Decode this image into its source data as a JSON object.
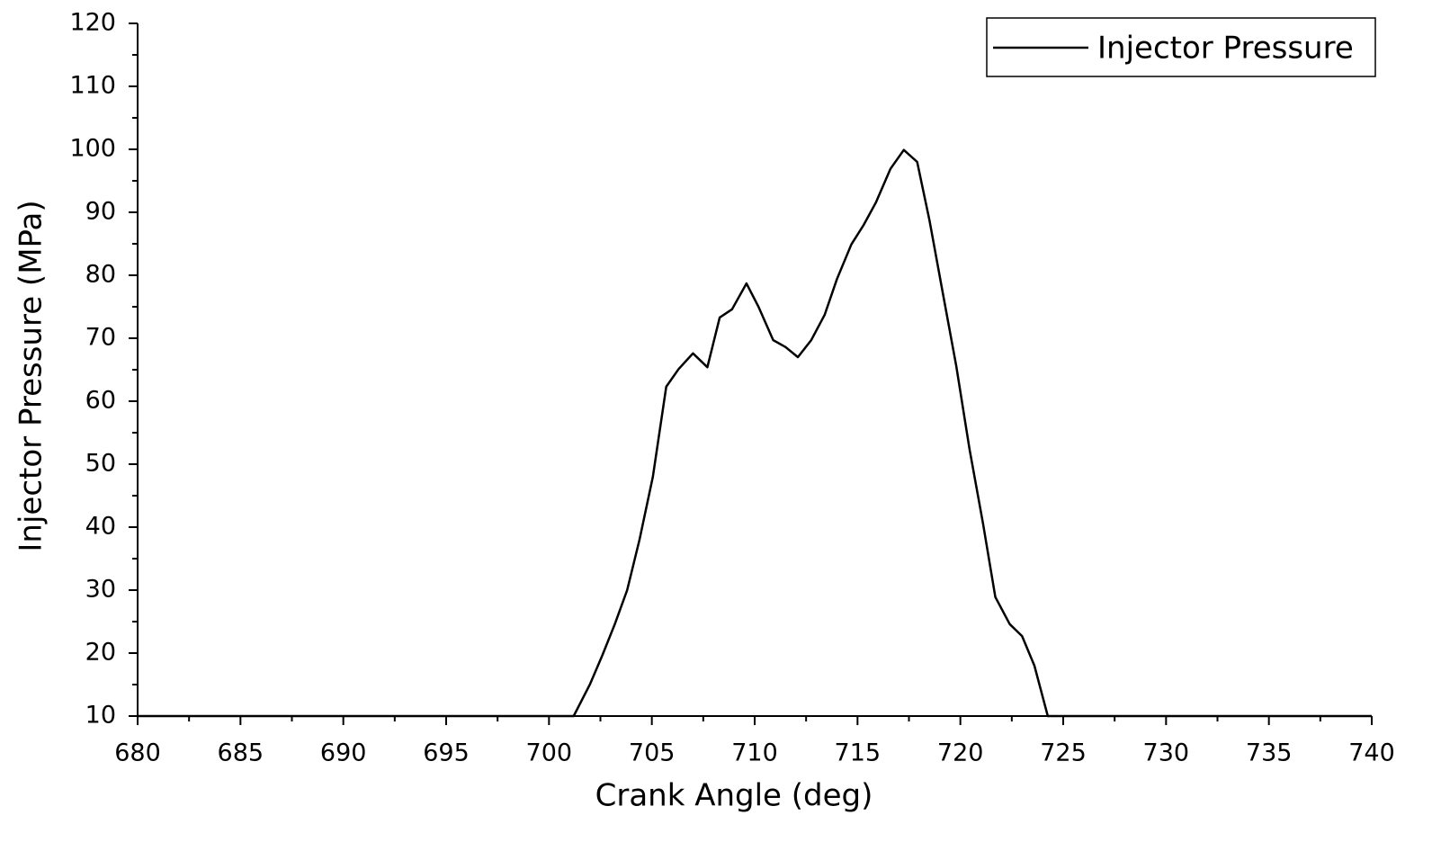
{
  "chart_data": {
    "type": "line",
    "xlabel": "Crank Angle (deg)",
    "ylabel": "Injector Pressure (MPa)",
    "x": [
      680,
      701.2,
      702.0,
      702.6,
      703.2,
      703.8,
      704.4,
      705.05,
      705.7,
      706.3,
      707.0,
      707.7,
      708.3,
      708.9,
      709.6,
      710.2,
      710.9,
      711.5,
      712.1,
      712.75,
      713.4,
      714.0,
      714.7,
      715.3,
      715.9,
      716.6,
      717.25,
      717.9,
      718.5,
      719.1,
      719.8,
      720.45,
      721.1,
      721.7,
      722.4,
      723.0,
      723.6,
      724.25,
      740
    ],
    "series": [
      {
        "name": "Injector Pressure",
        "color": "#000000",
        "values": [
          10,
          10,
          15.1,
          19.7,
          24.6,
          30,
          38,
          48,
          62.3,
          65.1,
          67.6,
          65.4,
          73.3,
          74.6,
          78.7,
          74.9,
          69.7,
          68.6,
          67,
          69.7,
          73.7,
          79.4,
          84.9,
          88,
          91.6,
          96.9,
          99.9,
          98,
          88.7,
          78,
          65.6,
          52.3,
          40.6,
          28.9,
          24.6,
          22.7,
          18,
          10,
          10
        ]
      }
    ],
    "xlim": [
      680,
      740
    ],
    "xticks": [
      680,
      685,
      690,
      695,
      700,
      705,
      710,
      715,
      720,
      725,
      730,
      735,
      740
    ],
    "ylim": [
      10,
      120
    ],
    "yticks": [
      10,
      20,
      30,
      40,
      50,
      60,
      70,
      80,
      90,
      100,
      110,
      120
    ],
    "legend": "top-right"
  }
}
